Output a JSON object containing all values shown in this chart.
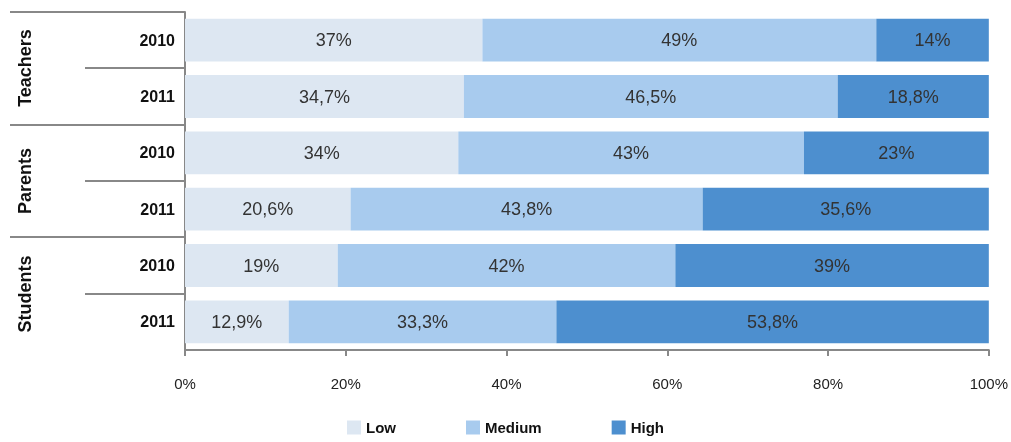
{
  "chart_data": {
    "type": "bar",
    "orientation": "horizontal",
    "stacked": true,
    "categories": [
      "2010",
      "2011",
      "2010",
      "2011",
      "2010",
      "2011"
    ],
    "annotations": [
      "Teachers",
      "Parents",
      "Students"
    ],
    "series": [
      {
        "name": "Low",
        "color": "#dde7f2",
        "values": [
          37,
          34.7,
          34,
          20.6,
          19,
          12.9
        ],
        "value_labels": [
          "37%",
          "34,7%",
          "34%",
          "20,6%",
          "19%",
          "12,9%"
        ]
      },
      {
        "name": "Medium",
        "color": "#a8cbee",
        "values": [
          49,
          46.5,
          43,
          43.8,
          42,
          33.3
        ],
        "value_labels": [
          "49%",
          "46,5%",
          "43%",
          "43,8%",
          "42%",
          "33,3%"
        ]
      },
      {
        "name": "High",
        "color": "#4d8fcf",
        "values": [
          14,
          18.8,
          23,
          35.6,
          39,
          53.8
        ],
        "value_labels": [
          "14%",
          "18,8%",
          "23%",
          "35,6%",
          "39%",
          "53,8%"
        ]
      }
    ],
    "xlim": [
      0,
      100
    ],
    "xticks": [
      {
        "value": 0,
        "label": "0%"
      },
      {
        "value": 20,
        "label": "20%"
      },
      {
        "value": 40,
        "label": "40%"
      },
      {
        "value": 60,
        "label": "60%"
      },
      {
        "value": 80,
        "label": "80%"
      },
      {
        "value": 100,
        "label": "100%"
      }
    ],
    "grid": false,
    "legend": "bottom"
  }
}
